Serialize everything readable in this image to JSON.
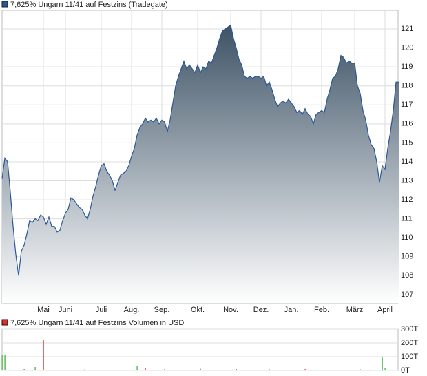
{
  "chart_data": [
    {
      "type": "area",
      "title": "7,625% Ungarn 11/41 auf Festzins (Tradegate)",
      "color": "#2b5797",
      "grid": true,
      "xlim": [
        0,
        143
      ],
      "xticks": [
        {
          "value": 15,
          "label": "Mai"
        },
        {
          "value": 23,
          "label": "Juni"
        },
        {
          "value": 36,
          "label": "Juli"
        },
        {
          "value": 47,
          "label": "Aug."
        },
        {
          "value": 58,
          "label": "Sep."
        },
        {
          "value": 71,
          "label": "Okt."
        },
        {
          "value": 83,
          "label": "Nov."
        },
        {
          "value": 94,
          "label": "Dez."
        },
        {
          "value": 105,
          "label": "Jan."
        },
        {
          "value": 116,
          "label": "Feb."
        },
        {
          "value": 128,
          "label": "März"
        },
        {
          "value": 139,
          "label": "April"
        }
      ],
      "ylim": [
        106.56,
        121.98
      ],
      "yticks": [
        107,
        108,
        109,
        110,
        111,
        112,
        113,
        114,
        115,
        116,
        117,
        118,
        119,
        120,
        121
      ],
      "values": [
        113.1,
        114.2,
        114.0,
        112.4,
        110.6,
        109.1,
        108.0,
        109.3,
        109.6,
        110.2,
        110.9,
        110.8,
        111.0,
        110.9,
        111.2,
        111.1,
        110.7,
        111.1,
        110.6,
        110.6,
        110.3,
        110.4,
        110.9,
        111.3,
        111.5,
        112.1,
        112.0,
        111.8,
        111.6,
        111.5,
        111.2,
        111.0,
        111.5,
        112.2,
        112.7,
        113.3,
        113.8,
        113.9,
        113.5,
        113.3,
        113.0,
        112.5,
        112.9,
        113.3,
        113.4,
        113.5,
        113.8,
        114.3,
        114.7,
        115.4,
        115.8,
        116.0,
        116.3,
        116.1,
        116.2,
        116.1,
        116.3,
        116.0,
        116.2,
        116.1,
        115.6,
        116.2,
        117.1,
        118.0,
        118.5,
        118.9,
        119.3,
        118.9,
        119.1,
        118.9,
        118.7,
        119.1,
        118.7,
        119.0,
        118.9,
        119.3,
        119.2,
        119.6,
        120.0,
        120.5,
        120.9,
        121.0,
        121.1,
        121.2,
        120.5,
        120.0,
        119.4,
        119.1,
        118.5,
        118.4,
        118.5,
        118.4,
        118.5,
        118.5,
        118.4,
        118.5,
        118.0,
        118.2,
        117.8,
        117.3,
        116.9,
        117.1,
        117.2,
        117.1,
        117.3,
        117.1,
        116.9,
        116.6,
        116.7,
        116.5,
        116.8,
        116.5,
        116.4,
        116.0,
        116.5,
        116.6,
        116.7,
        116.6,
        117.3,
        117.8,
        118.4,
        118.5,
        118.9,
        119.6,
        119.5,
        119.2,
        119.3,
        119.2,
        119.2,
        118.0,
        117.6,
        116.7,
        116.2,
        115.4,
        114.9,
        114.7,
        114.0,
        112.9,
        113.8,
        113.6,
        114.7,
        115.6,
        116.7,
        118.2,
        118.2
      ]
    },
    {
      "type": "bar",
      "title": "7,625% Ungarn 11/41 auf Festzins Volumen in USD",
      "color": "#c33",
      "grid": true,
      "xlim": [
        0,
        143
      ],
      "ylim": [
        0,
        300000
      ],
      "yticks": [
        {
          "value": 0,
          "label": "0T"
        },
        {
          "value": 100000,
          "label": "100T"
        },
        {
          "value": 200000,
          "label": "200T"
        },
        {
          "value": 300000,
          "label": "300T"
        }
      ],
      "x": [
        0,
        1,
        8,
        12,
        15,
        30,
        49,
        52,
        59,
        72,
        85,
        97,
        110,
        130,
        138,
        139
      ],
      "values": [
        110000,
        115000,
        10000,
        25000,
        220000,
        8000,
        30000,
        15000,
        10000,
        12000,
        10000,
        8000,
        10000,
        8000,
        100000,
        15000
      ],
      "colors": [
        "#3a3",
        "#3a3",
        "#3a3",
        "#3a3",
        "#c33",
        "#3a3",
        "#3a3",
        "#c33",
        "#c33",
        "#3a3",
        "#c33",
        "#c33",
        "#c33",
        "#3a3",
        "#3a3",
        "#3a3"
      ]
    }
  ]
}
